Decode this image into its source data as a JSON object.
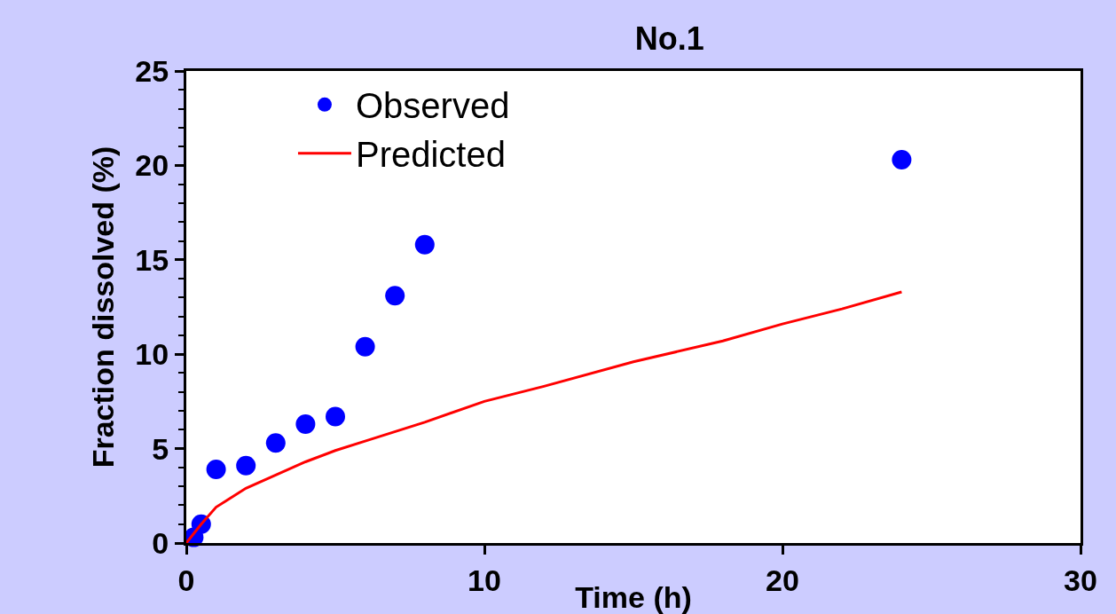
{
  "chart_data": {
    "type": "scatter",
    "title": "No.1",
    "xlabel": "Time (h)",
    "ylabel": "Fraction dissolved (%)",
    "xlim": [
      0,
      30
    ],
    "xticks": [
      0,
      10,
      20,
      30
    ],
    "ylim": [
      0,
      25
    ],
    "yticks": [
      0,
      5,
      10,
      15,
      20,
      25
    ],
    "grid": false,
    "legend": "top left",
    "series": [
      {
        "name": "Observed",
        "marker": "circle",
        "color": "#0000ff",
        "x": [
          0.25,
          0.5,
          1,
          2,
          3,
          4,
          5,
          6,
          7,
          8,
          24
        ],
        "values": [
          0.3,
          1.0,
          3.9,
          4.1,
          5.3,
          6.3,
          6.7,
          10.4,
          13.1,
          15.8,
          20.3
        ]
      },
      {
        "name": "Predicted",
        "type": "line",
        "line_style": "solid",
        "color": "#ff0000",
        "x": [
          0,
          0.5,
          1,
          2,
          3,
          4,
          5,
          6,
          8,
          10,
          12,
          15,
          18,
          20,
          22,
          24
        ],
        "values": [
          0,
          1.0,
          1.9,
          2.9,
          3.6,
          4.3,
          4.9,
          5.4,
          6.4,
          7.5,
          8.3,
          9.6,
          10.7,
          11.6,
          12.4,
          13.3
        ]
      }
    ]
  }
}
